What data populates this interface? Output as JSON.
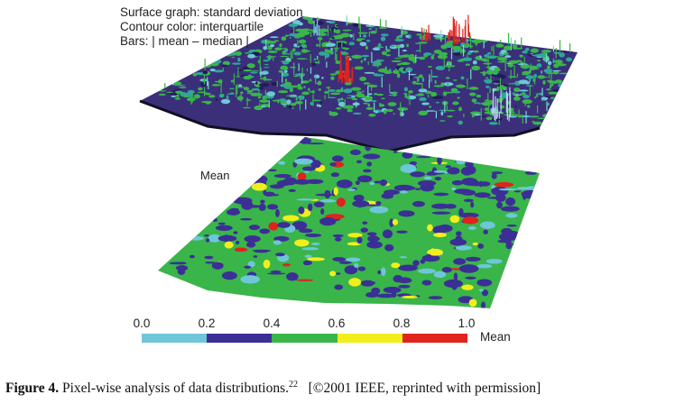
{
  "figure": {
    "legend_lines": [
      "Surface graph: standard deviation",
      "Contour color: interquartile",
      "Bars: | mean – median |"
    ],
    "lower_surface_label": "Mean",
    "colorbar": {
      "ticks": [
        "0.0",
        "0.2",
        "0.4",
        "0.6",
        "0.8",
        "1.0"
      ],
      "axis_label": "Mean",
      "colors": [
        "#6ec7d8",
        "#3b2f95",
        "#39b54a",
        "#f2ee1c",
        "#e0231d"
      ]
    }
  },
  "caption": {
    "label": "Figure 4.",
    "text": "Pixel-wise analysis of data distributions.",
    "ref": "22",
    "credit": "[©2001 IEEE, reprinted with permission]"
  }
}
